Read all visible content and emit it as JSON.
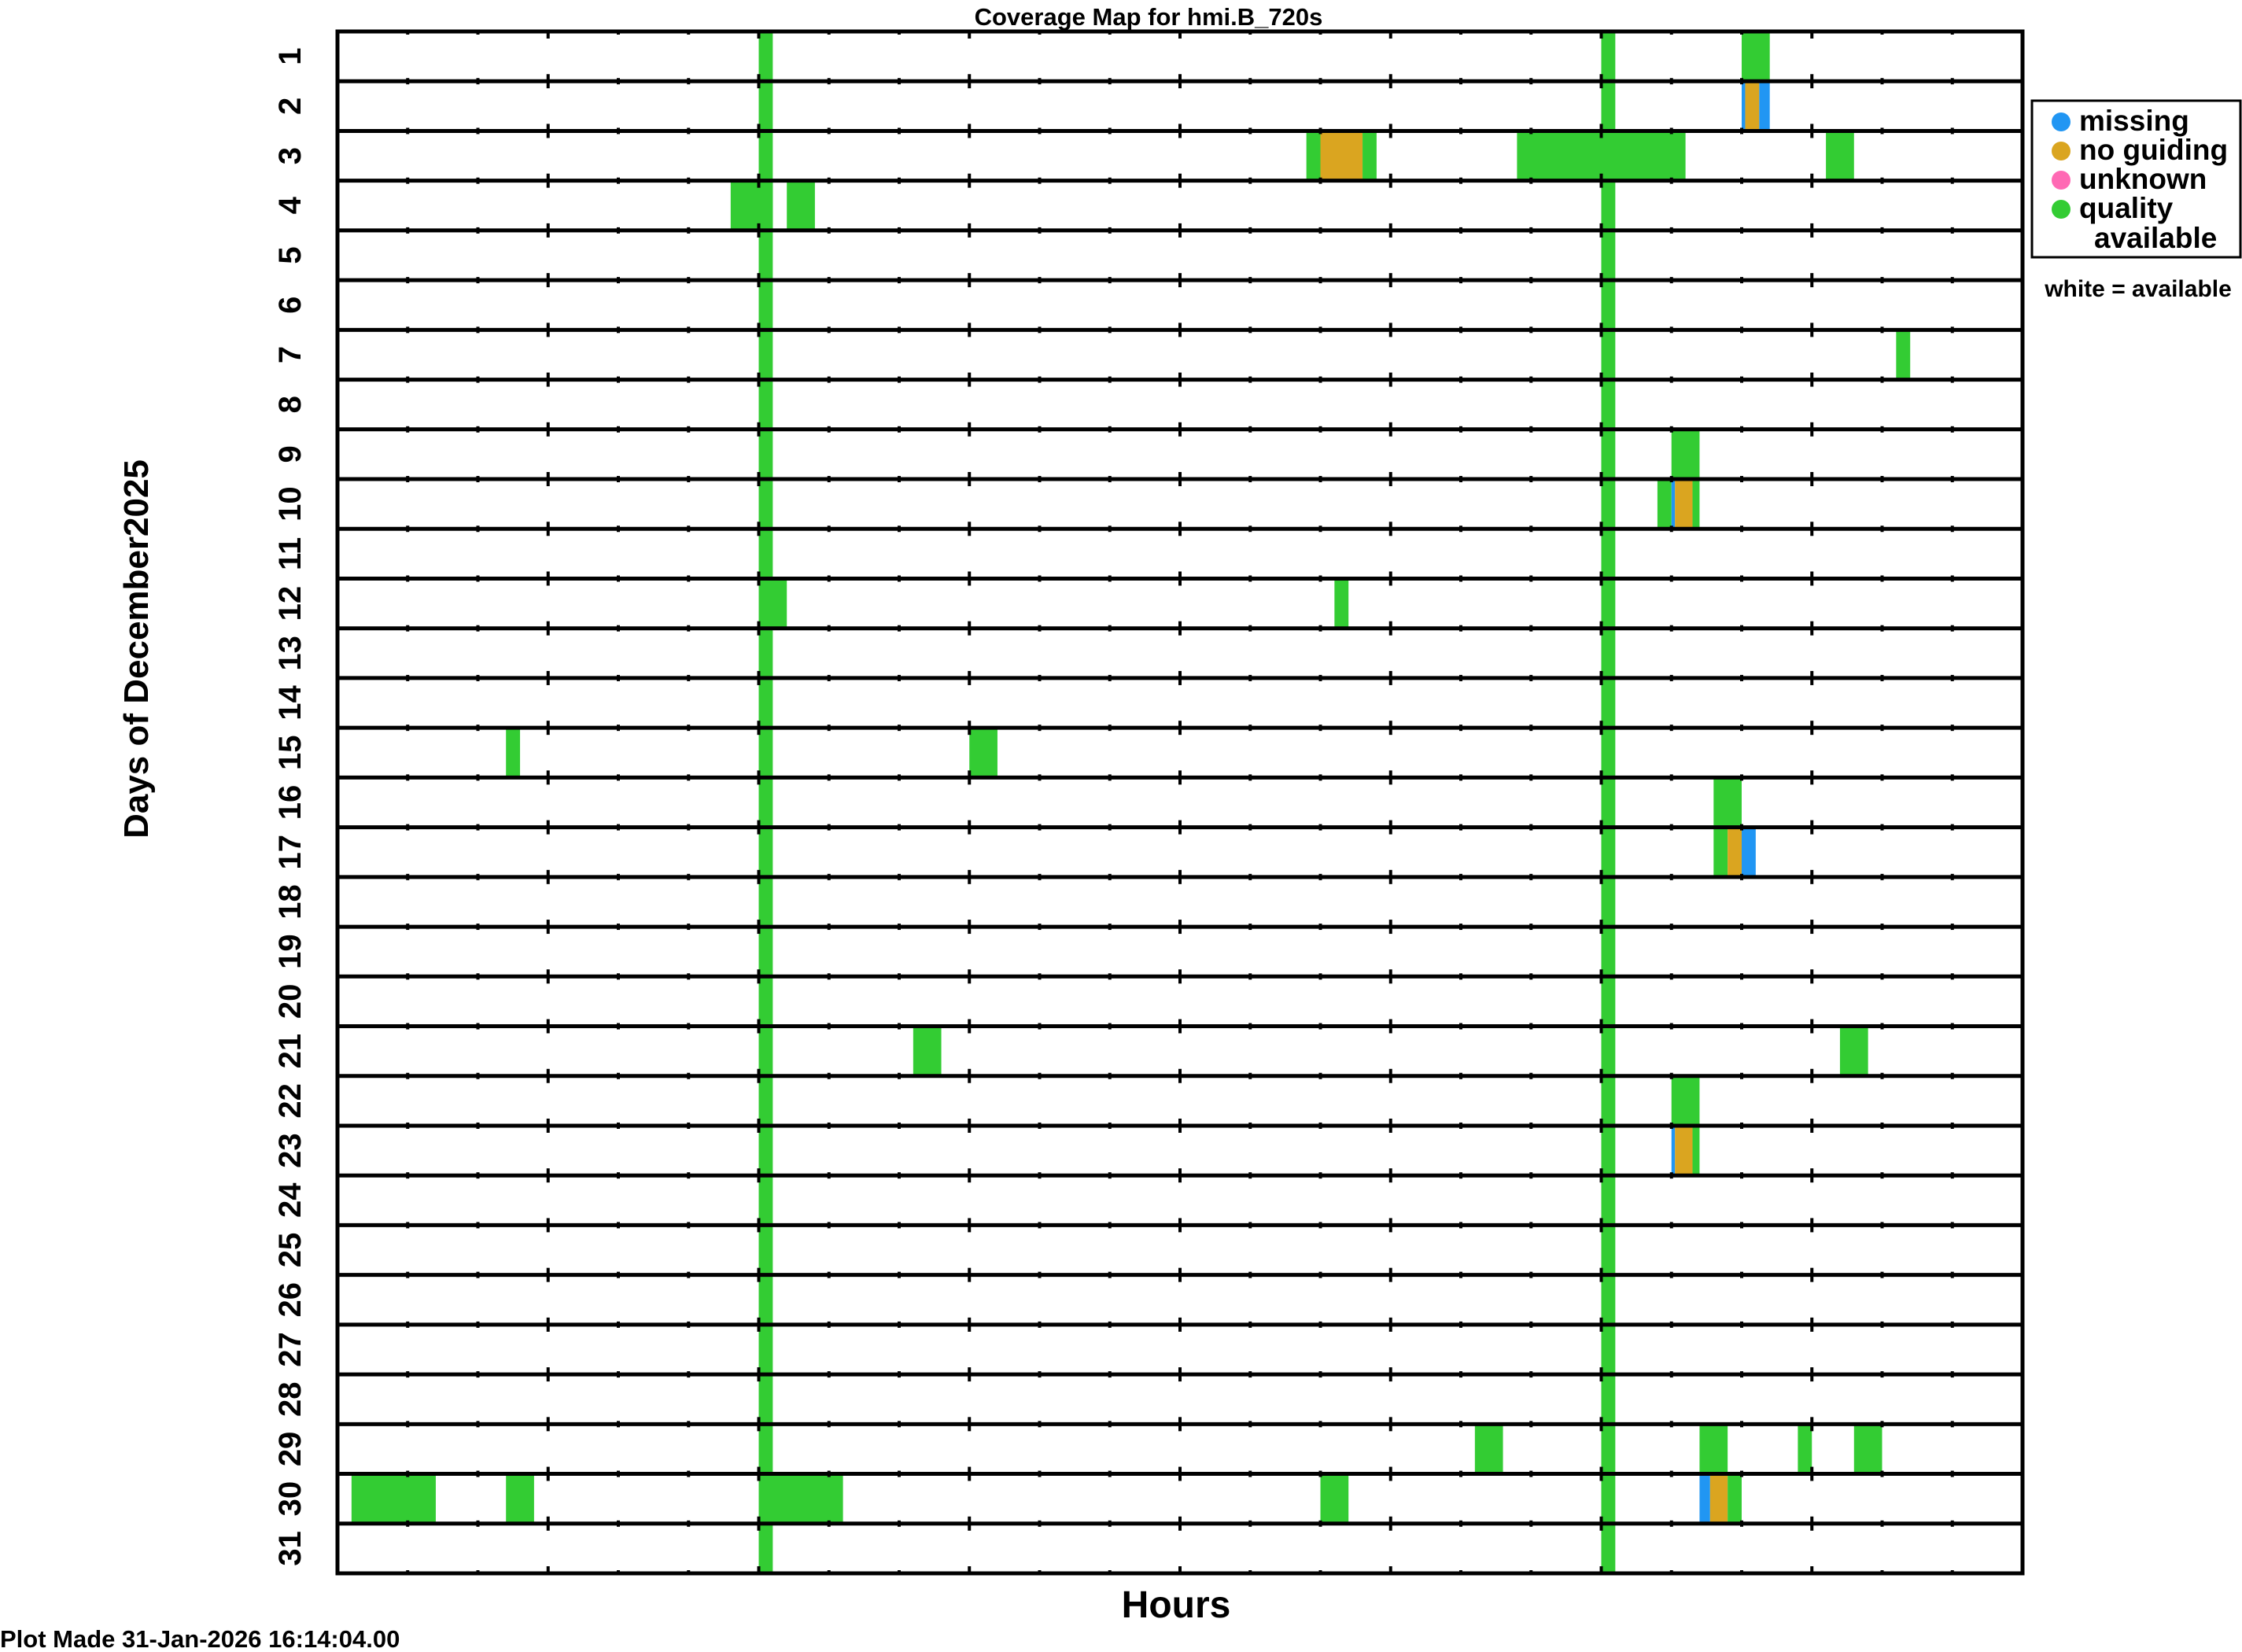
{
  "title": "Coverage Map for hmi.B_720s",
  "footer": "Plot Made 31-Jan-2026 16:14:04.00",
  "legend_note": "white = available",
  "colors": {
    "missing": "#2196f3",
    "no_guiding": "#daa520",
    "unknown": "#ff69b4",
    "quality": "#33cc33"
  },
  "chart_data": {
    "type": "heatmap",
    "title": "Coverage Map for hmi.B_720s",
    "xlabel": "Hours",
    "ylabel": "Days of December2025",
    "xlim": [
      0,
      24
    ],
    "x_ticks_major_every_hours": 3,
    "x_ticks_minor_every_hours": 1,
    "y_days": [
      "1",
      "2",
      "3",
      "4",
      "5",
      "6",
      "7",
      "8",
      "9",
      "10",
      "11",
      "12",
      "13",
      "14",
      "15",
      "16",
      "17",
      "18",
      "19",
      "20",
      "21",
      "22",
      "23",
      "24",
      "25",
      "26",
      "27",
      "28",
      "29",
      "30",
      "31"
    ],
    "legend": [
      {
        "key": "missing",
        "label": "missing"
      },
      {
        "key": "no_guiding",
        "label": "no guiding"
      },
      {
        "key": "unknown",
        "label": "unknown"
      },
      {
        "key": "quality",
        "label": "quality available"
      }
    ],
    "daily_quality_bands_hours": [
      [
        6.0,
        6.2
      ],
      [
        18.0,
        18.2
      ]
    ],
    "segments": [
      {
        "day": 1,
        "start": 20.0,
        "end": 20.4,
        "status": "quality"
      },
      {
        "day": 2,
        "start": 20.0,
        "end": 20.05,
        "status": "missing"
      },
      {
        "day": 2,
        "start": 20.05,
        "end": 20.25,
        "status": "no_guiding"
      },
      {
        "day": 2,
        "start": 20.25,
        "end": 20.4,
        "status": "missing"
      },
      {
        "day": 3,
        "start": 13.8,
        "end": 14.0,
        "status": "quality"
      },
      {
        "day": 3,
        "start": 14.0,
        "end": 14.6,
        "status": "no_guiding"
      },
      {
        "day": 3,
        "start": 14.6,
        "end": 14.8,
        "status": "quality"
      },
      {
        "day": 3,
        "start": 16.8,
        "end": 19.2,
        "status": "quality"
      },
      {
        "day": 3,
        "start": 21.2,
        "end": 21.6,
        "status": "quality"
      },
      {
        "day": 4,
        "start": 5.6,
        "end": 6.2,
        "status": "quality"
      },
      {
        "day": 4,
        "start": 6.4,
        "end": 6.8,
        "status": "quality"
      },
      {
        "day": 7,
        "start": 22.2,
        "end": 22.4,
        "status": "quality"
      },
      {
        "day": 9,
        "start": 19.0,
        "end": 19.4,
        "status": "quality"
      },
      {
        "day": 10,
        "start": 18.8,
        "end": 19.0,
        "status": "quality"
      },
      {
        "day": 10,
        "start": 19.0,
        "end": 19.05,
        "status": "missing"
      },
      {
        "day": 10,
        "start": 19.05,
        "end": 19.3,
        "status": "no_guiding"
      },
      {
        "day": 10,
        "start": 19.3,
        "end": 19.4,
        "status": "quality"
      },
      {
        "day": 12,
        "start": 6.0,
        "end": 6.4,
        "status": "quality"
      },
      {
        "day": 12,
        "start": 14.2,
        "end": 14.4,
        "status": "quality"
      },
      {
        "day": 15,
        "start": 2.4,
        "end": 2.6,
        "status": "quality"
      },
      {
        "day": 15,
        "start": 9.0,
        "end": 9.4,
        "status": "quality"
      },
      {
        "day": 16,
        "start": 19.6,
        "end": 20.0,
        "status": "quality"
      },
      {
        "day": 17,
        "start": 19.6,
        "end": 19.8,
        "status": "quality"
      },
      {
        "day": 17,
        "start": 19.8,
        "end": 20.0,
        "status": "no_guiding"
      },
      {
        "day": 17,
        "start": 20.0,
        "end": 20.2,
        "status": "missing"
      },
      {
        "day": 21,
        "start": 8.2,
        "end": 8.6,
        "status": "quality"
      },
      {
        "day": 21,
        "start": 21.4,
        "end": 21.8,
        "status": "quality"
      },
      {
        "day": 22,
        "start": 19.0,
        "end": 19.4,
        "status": "quality"
      },
      {
        "day": 23,
        "start": 19.0,
        "end": 19.05,
        "status": "missing"
      },
      {
        "day": 23,
        "start": 19.05,
        "end": 19.3,
        "status": "no_guiding"
      },
      {
        "day": 23,
        "start": 19.3,
        "end": 19.4,
        "status": "quality"
      },
      {
        "day": 29,
        "start": 16.2,
        "end": 16.6,
        "status": "quality"
      },
      {
        "day": 29,
        "start": 19.4,
        "end": 19.8,
        "status": "quality"
      },
      {
        "day": 29,
        "start": 20.8,
        "end": 21.0,
        "status": "quality"
      },
      {
        "day": 29,
        "start": 21.6,
        "end": 22.0,
        "status": "quality"
      },
      {
        "day": 30,
        "start": 0.2,
        "end": 1.4,
        "status": "quality"
      },
      {
        "day": 30,
        "start": 2.4,
        "end": 2.8,
        "status": "quality"
      },
      {
        "day": 30,
        "start": 6.0,
        "end": 7.2,
        "status": "quality"
      },
      {
        "day": 30,
        "start": 14.0,
        "end": 14.4,
        "status": "quality"
      },
      {
        "day": 30,
        "start": 19.4,
        "end": 19.55,
        "status": "missing"
      },
      {
        "day": 30,
        "start": 19.55,
        "end": 19.8,
        "status": "no_guiding"
      },
      {
        "day": 30,
        "start": 19.8,
        "end": 20.0,
        "status": "quality"
      }
    ]
  }
}
